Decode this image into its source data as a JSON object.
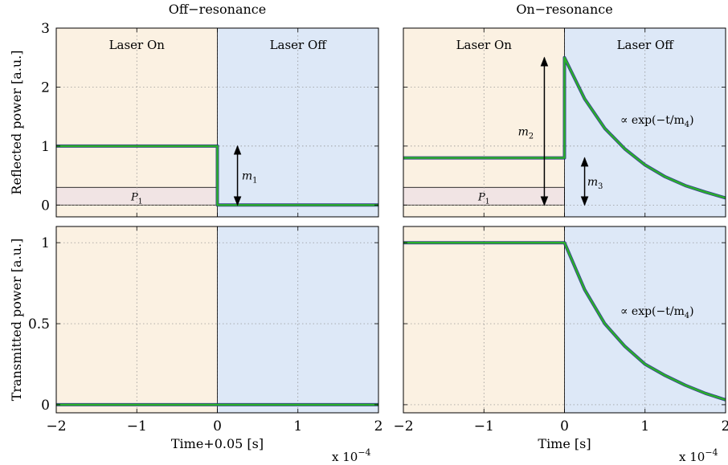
{
  "chart_data": [
    {
      "type": "line",
      "title": "Off−resonance",
      "ylabel": "Reflected power [a.u.]",
      "xlabel": "",
      "xlim": [
        -2,
        2
      ],
      "ylim": [
        -0.2,
        3
      ],
      "xticks": [
        -2,
        -1,
        0,
        1,
        2
      ],
      "xtick_labels": [
        "",
        "",
        "",
        "",
        ""
      ],
      "yticks": [
        0,
        1,
        2,
        3
      ],
      "ytick_labels": [
        "0",
        "1",
        "2",
        "3"
      ],
      "grid": true,
      "regions": [
        {
          "label": "Laser On",
          "from": -2,
          "to": 0,
          "color": "#fbf1e2"
        },
        {
          "label": "Laser Off",
          "from": 0,
          "to": 2,
          "color": "#dde8f7"
        }
      ],
      "band": {
        "label": "P",
        "sub": "1",
        "from": 0,
        "to": 0.3,
        "x_from": -2,
        "x_to": 0,
        "color": "#f1e4e4"
      },
      "series": [
        {
          "color": "#2ab02a",
          "x": [
            -2,
            0,
            0,
            2
          ],
          "y": [
            1.0,
            1.0,
            0.0,
            0.0
          ]
        }
      ],
      "annotations": [
        {
          "type": "arrow",
          "x": 0.25,
          "y1": 0.0,
          "y2": 1.0
        },
        {
          "type": "label",
          "text": "m",
          "sub": "1",
          "x": 0.4,
          "y": 0.5
        }
      ]
    },
    {
      "type": "line",
      "title": "On−resonance",
      "ylabel": "",
      "xlabel": "",
      "xlim": [
        -2,
        2
      ],
      "ylim": [
        -0.2,
        3
      ],
      "xticks": [
        -2,
        -1,
        0,
        1,
        2
      ],
      "xtick_labels": [
        "",
        "",
        "",
        "",
        ""
      ],
      "yticks": [
        0,
        1,
        2,
        3
      ],
      "ytick_labels": [
        "",
        "",
        "",
        ""
      ],
      "grid": true,
      "regions": [
        {
          "label": "Laser On",
          "from": -2,
          "to": 0,
          "color": "#fbf1e2"
        },
        {
          "label": "Laser Off",
          "from": 0,
          "to": 2,
          "color": "#dde8f7"
        }
      ],
      "band": {
        "label": "P",
        "sub": "1",
        "from": 0,
        "to": 0.3,
        "x_from": -2,
        "x_to": 0,
        "color": "#f1e4e4"
      },
      "series": [
        {
          "color": "#2ab02a",
          "x": [
            -2,
            0,
            0,
            0.25,
            0.5,
            0.75,
            1.0,
            1.25,
            1.5,
            1.75,
            2.0
          ],
          "y": [
            0.8,
            0.8,
            2.5,
            1.8,
            1.3,
            0.95,
            0.68,
            0.48,
            0.33,
            0.22,
            0.12
          ]
        }
      ],
      "annotations": [
        {
          "type": "arrow",
          "x": -0.25,
          "y1": 0.0,
          "y2": 2.5
        },
        {
          "type": "label",
          "text": "m",
          "sub": "2",
          "x": -0.48,
          "y": 1.25
        },
        {
          "type": "arrow",
          "x": 0.25,
          "y1": 0.0,
          "y2": 0.8
        },
        {
          "type": "label",
          "text": "m",
          "sub": "3",
          "x": 0.38,
          "y": 0.4
        },
        {
          "type": "label",
          "text": "∝ exp(−t/m",
          "sub": "4",
          "tail": ")",
          "x": 1.15,
          "y": 1.45
        }
      ]
    },
    {
      "type": "line",
      "title": "",
      "ylabel": "Transmitted power [a.u.]",
      "xlabel": "Time+0.05 [s]",
      "xlim": [
        -2,
        2
      ],
      "ylim": [
        -0.05,
        1.1
      ],
      "xticks": [
        -2,
        -1,
        0,
        1,
        2
      ],
      "xtick_labels": [
        "−2",
        "−1",
        "0",
        "1",
        "2"
      ],
      "yticks": [
        0,
        0.5,
        1
      ],
      "ytick_labels": [
        "0",
        "0.5",
        "1"
      ],
      "x_multiplier": "x 10",
      "x_multiplier_exp": "−4",
      "grid": true,
      "regions": [
        {
          "label": "",
          "from": -2,
          "to": 0,
          "color": "#fbf1e2"
        },
        {
          "label": "",
          "from": 0,
          "to": 2,
          "color": "#dde8f7"
        }
      ],
      "series": [
        {
          "color": "#2ab02a",
          "x": [
            -2,
            2
          ],
          "y": [
            0.0,
            0.0
          ]
        }
      ],
      "annotations": []
    },
    {
      "type": "line",
      "title": "",
      "ylabel": "",
      "xlabel": "Time [s]",
      "xlim": [
        -2,
        2
      ],
      "ylim": [
        -0.05,
        1.1
      ],
      "xticks": [
        -2,
        -1,
        0,
        1,
        2
      ],
      "xtick_labels": [
        "−2",
        "−1",
        "0",
        "1",
        "2"
      ],
      "yticks": [
        0,
        0.5,
        1
      ],
      "ytick_labels": [
        "",
        "",
        ""
      ],
      "x_multiplier": "x 10",
      "x_multiplier_exp": "−4",
      "grid": true,
      "regions": [
        {
          "label": "",
          "from": -2,
          "to": 0,
          "color": "#fbf1e2"
        },
        {
          "label": "",
          "from": 0,
          "to": 2,
          "color": "#dde8f7"
        }
      ],
      "series": [
        {
          "color": "#2ab02a",
          "x": [
            -2,
            0,
            0.25,
            0.5,
            0.75,
            1.0,
            1.25,
            1.5,
            1.75,
            2.0
          ],
          "y": [
            1.0,
            1.0,
            0.71,
            0.5,
            0.36,
            0.25,
            0.18,
            0.12,
            0.07,
            0.03
          ]
        }
      ],
      "annotations": [
        {
          "type": "label",
          "text": "∝ exp(−t/m",
          "sub": "4",
          "tail": ")",
          "x": 1.15,
          "y": 0.58
        }
      ]
    }
  ]
}
